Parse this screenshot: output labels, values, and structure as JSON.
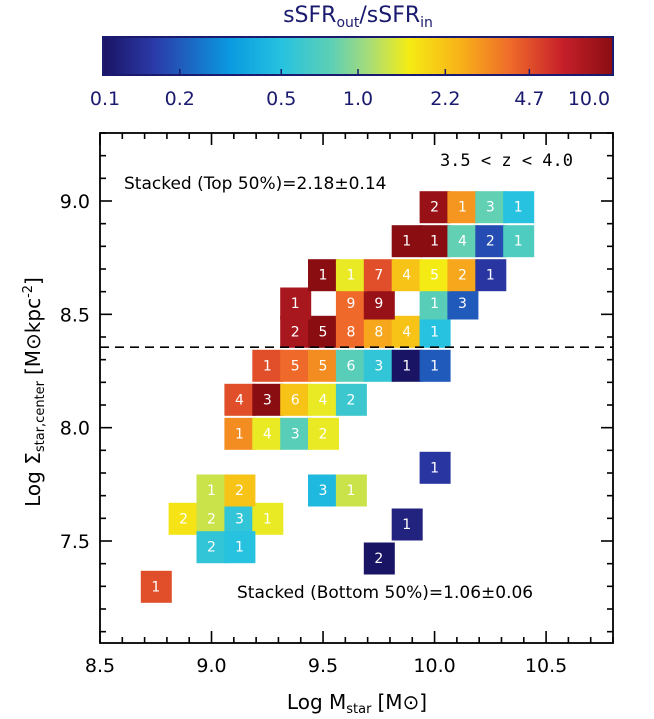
{
  "chart_data": {
    "type": "heatmap",
    "title": "",
    "xlabel": "Log M",
    "xlabel_sub": "star",
    "xlabel_unit": "[M⊙]",
    "ylabel": "Log Σ",
    "ylabel_sub": "star,center",
    "ylabel_unit": "[M⊙kpc",
    "ylabel_unit_sup": "-2",
    "ylabel_unit_close": "]",
    "xlim": [
      8.5,
      10.8
    ],
    "ylim": [
      7.05,
      9.3
    ],
    "xticks": [
      {
        "value": 8.5,
        "label": "8.5"
      },
      {
        "value": 9.0,
        "label": "9.0"
      },
      {
        "value": 9.5,
        "label": "9.5"
      },
      {
        "value": 10.0,
        "label": "10.0"
      },
      {
        "value": 10.5,
        "label": "10.5"
      }
    ],
    "yticks": [
      {
        "value": 7.5,
        "label": "7.5"
      },
      {
        "value": 8.0,
        "label": "8.0"
      },
      {
        "value": 8.5,
        "label": "8.5"
      },
      {
        "value": 9.0,
        "label": "9.0"
      }
    ],
    "bin_width_x": 0.125,
    "bin_width_y": 0.125,
    "divider_y": 8.355,
    "annotations": {
      "redshift": "3.5 < z < 4.0",
      "top": "Stacked (Top 50%)=2.18±0.14",
      "bottom": "Stacked (Bottom 50%)=1.06±0.06"
    },
    "colorbar": {
      "label": "sSFR",
      "label_sub1": "out",
      "label_sep": "/sSFR",
      "label_sub2": "in",
      "scale": "log",
      "min": 0.1,
      "max": 10.0,
      "ticks": [
        "0.1",
        "0.2",
        "0.5",
        "1.0",
        "2.2",
        "4.7",
        "10.0"
      ]
    },
    "cells": [
      {
        "x": 8.75,
        "y": 7.3,
        "count": "1",
        "ratio": 4.7
      },
      {
        "x": 8.875,
        "y": 7.6,
        "count": "2",
        "ratio": 1.7
      },
      {
        "x": 9.0,
        "y": 7.6,
        "count": "2",
        "ratio": 1.3
      },
      {
        "x": 9.125,
        "y": 7.6,
        "count": "3",
        "ratio": 0.55
      },
      {
        "x": 9.25,
        "y": 7.6,
        "count": "1",
        "ratio": 1.5
      },
      {
        "x": 9.0,
        "y": 7.725,
        "count": "1",
        "ratio": 1.3
      },
      {
        "x": 9.125,
        "y": 7.725,
        "count": "2",
        "ratio": 2.2
      },
      {
        "x": 9.0,
        "y": 7.475,
        "count": "2",
        "ratio": 0.55
      },
      {
        "x": 9.125,
        "y": 7.475,
        "count": "1",
        "ratio": 0.5
      },
      {
        "x": 9.5,
        "y": 7.725,
        "count": "3",
        "ratio": 0.45
      },
      {
        "x": 9.625,
        "y": 7.725,
        "count": "1",
        "ratio": 1.3
      },
      {
        "x": 9.75,
        "y": 7.425,
        "count": "2",
        "ratio": 0.1
      },
      {
        "x": 9.875,
        "y": 7.575,
        "count": "1",
        "ratio": 0.12
      },
      {
        "x": 10.0,
        "y": 7.825,
        "count": "1",
        "ratio": 0.15
      },
      {
        "x": 9.125,
        "y": 7.975,
        "count": "1",
        "ratio": 3.2
      },
      {
        "x": 9.25,
        "y": 7.975,
        "count": "4",
        "ratio": 1.5
      },
      {
        "x": 9.375,
        "y": 7.975,
        "count": "3",
        "ratio": 0.75
      },
      {
        "x": 9.5,
        "y": 7.975,
        "count": "2",
        "ratio": 1.5
      },
      {
        "x": 9.125,
        "y": 8.125,
        "count": "4",
        "ratio": 4.7
      },
      {
        "x": 9.25,
        "y": 8.125,
        "count": "3",
        "ratio": 10.0
      },
      {
        "x": 9.375,
        "y": 8.125,
        "count": "6",
        "ratio": 2.2
      },
      {
        "x": 9.5,
        "y": 8.125,
        "count": "4",
        "ratio": 1.5
      },
      {
        "x": 9.625,
        "y": 8.125,
        "count": "2",
        "ratio": 0.6
      },
      {
        "x": 9.25,
        "y": 8.275,
        "count": "1",
        "ratio": 4.7
      },
      {
        "x": 9.375,
        "y": 8.275,
        "count": "5",
        "ratio": 4.0
      },
      {
        "x": 9.5,
        "y": 8.275,
        "count": "5",
        "ratio": 3.2
      },
      {
        "x": 9.625,
        "y": 8.275,
        "count": "6",
        "ratio": 0.75
      },
      {
        "x": 9.75,
        "y": 8.275,
        "count": "3",
        "ratio": 0.55
      },
      {
        "x": 9.875,
        "y": 8.275,
        "count": "1",
        "ratio": 0.1
      },
      {
        "x": 10.0,
        "y": 8.275,
        "count": "1",
        "ratio": 0.2
      },
      {
        "x": 9.375,
        "y": 8.425,
        "count": "2",
        "ratio": 8.0
      },
      {
        "x": 9.5,
        "y": 8.425,
        "count": "5",
        "ratio": 10.0
      },
      {
        "x": 9.625,
        "y": 8.425,
        "count": "8",
        "ratio": 4.0
      },
      {
        "x": 9.75,
        "y": 8.425,
        "count": "8",
        "ratio": 2.7
      },
      {
        "x": 9.875,
        "y": 8.425,
        "count": "4",
        "ratio": 2.2
      },
      {
        "x": 10.0,
        "y": 8.425,
        "count": "1",
        "ratio": 0.5
      },
      {
        "x": 9.375,
        "y": 8.55,
        "count": "1",
        "ratio": 8.0
      },
      {
        "x": 9.625,
        "y": 8.55,
        "count": "9",
        "ratio": 4.0
      },
      {
        "x": 9.75,
        "y": 8.55,
        "count": "9",
        "ratio": 9.0
      },
      {
        "x": 10.0,
        "y": 8.55,
        "count": "1",
        "ratio": 0.75
      },
      {
        "x": 10.125,
        "y": 8.55,
        "count": "3",
        "ratio": 0.2
      },
      {
        "x": 9.5,
        "y": 8.675,
        "count": "1",
        "ratio": 10.0
      },
      {
        "x": 9.625,
        "y": 8.675,
        "count": "1",
        "ratio": 1.5
      },
      {
        "x": 9.75,
        "y": 8.675,
        "count": "7",
        "ratio": 4.7
      },
      {
        "x": 9.875,
        "y": 8.675,
        "count": "4",
        "ratio": 2.2
      },
      {
        "x": 10.0,
        "y": 8.675,
        "count": "5",
        "ratio": 1.6
      },
      {
        "x": 10.125,
        "y": 8.675,
        "count": "2",
        "ratio": 2.7
      },
      {
        "x": 10.25,
        "y": 8.675,
        "count": "1",
        "ratio": 0.15
      },
      {
        "x": 9.875,
        "y": 8.825,
        "count": "1",
        "ratio": 10.0
      },
      {
        "x": 10.0,
        "y": 8.825,
        "count": "1",
        "ratio": 10.0
      },
      {
        "x": 10.125,
        "y": 8.825,
        "count": "4",
        "ratio": 0.8
      },
      {
        "x": 10.25,
        "y": 8.825,
        "count": "2",
        "ratio": 0.18
      },
      {
        "x": 10.375,
        "y": 8.825,
        "count": "1",
        "ratio": 0.7
      },
      {
        "x": 10.0,
        "y": 8.975,
        "count": "2",
        "ratio": 9.0
      },
      {
        "x": 10.125,
        "y": 8.975,
        "count": "1",
        "ratio": 3.0
      },
      {
        "x": 10.25,
        "y": 8.975,
        "count": "3",
        "ratio": 0.8
      },
      {
        "x": 10.375,
        "y": 8.975,
        "count": "1",
        "ratio": 0.5
      }
    ]
  }
}
